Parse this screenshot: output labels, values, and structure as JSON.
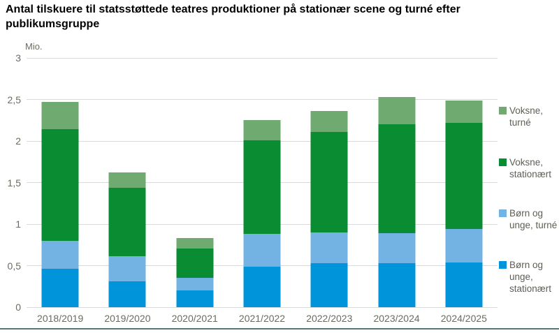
{
  "title": "Antal tilskuere til statsstøttede teatres produktioner på stationær scene og turné efter publikumsgruppe",
  "chart_data": {
    "type": "bar",
    "stacked": true,
    "title": "Antal tilskuere til statsstøttede teatres produktioner på stationær scene og turné efter publikumsgruppe",
    "unit_label": "Mio.",
    "xlabel": "",
    "ylabel": "Mio.",
    "ylim": [
      0,
      3
    ],
    "ytick_labels": [
      "0",
      "0,5",
      "1",
      "1,5",
      "2",
      "2,5",
      "3"
    ],
    "grid": true,
    "legend_position": "right",
    "categories": [
      "2018/2019",
      "2019/2020",
      "2020/2021",
      "2021/2022",
      "2022/2023",
      "2023/2024",
      "2024/2025"
    ],
    "series": [
      {
        "name": "Børn og unge, stationært",
        "color": "#0095DB",
        "values": [
          0.46,
          0.31,
          0.2,
          0.49,
          0.53,
          0.53,
          0.54
        ]
      },
      {
        "name": "Børn og unge, turné",
        "color": "#73B3E3",
        "values": [
          0.34,
          0.3,
          0.15,
          0.39,
          0.37,
          0.36,
          0.4
        ]
      },
      {
        "name": "Voksne, stationært",
        "color": "#098C32",
        "values": [
          1.34,
          0.83,
          0.36,
          1.13,
          1.21,
          1.31,
          1.28
        ]
      },
      {
        "name": "Voksne, turné",
        "color": "#6FAB70",
        "values": [
          0.33,
          0.18,
          0.12,
          0.24,
          0.25,
          0.33,
          0.27
        ]
      }
    ],
    "totals": [
      2.47,
      1.62,
      0.83,
      2.25,
      2.36,
      2.53,
      2.49
    ]
  },
  "colors": {
    "gridline": "#d9d9d9",
    "axis_text": "#6b6b62",
    "legend_text": "#5e5e56",
    "footer_rule": "#56757D"
  }
}
